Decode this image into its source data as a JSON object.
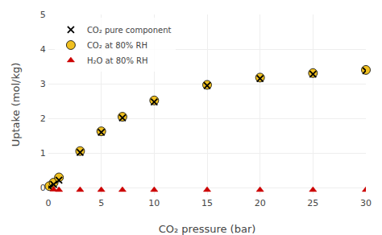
{
  "chart_data": {
    "type": "scatter",
    "x_label": "CO₂ pressure (bar)",
    "y_label": "Uptake (mol/kg)",
    "series": [
      {
        "name": "CO₂ pure component",
        "color": "black",
        "marker": "x",
        "x": [
          0.1,
          0.5,
          1.0,
          3.0,
          5.0,
          7.0,
          10.0,
          15.0,
          20.0,
          25.0,
          30.0
        ],
        "values": [
          0.02,
          0.1,
          0.22,
          1.02,
          1.6,
          2.02,
          2.48,
          2.95,
          3.15,
          3.28,
          3.38
        ]
      },
      {
        "name": "CO₂ at 80% RH",
        "color": "#F0C020",
        "marker": "circle",
        "x": [
          0.1,
          0.5,
          1.0,
          3.0,
          5.0,
          7.0,
          10.0,
          15.0,
          20.0,
          25.0,
          30.0
        ],
        "values": [
          0.05,
          0.15,
          0.3,
          1.06,
          1.63,
          2.05,
          2.52,
          2.97,
          3.18,
          3.31,
          3.4
        ]
      },
      {
        "name": "H₂O at 80% RH",
        "color": "#CC0000",
        "marker": "triangle",
        "x": [
          0.5,
          1.0,
          3.0,
          5.0,
          7.0,
          10.0,
          15.0,
          20.0,
          25.0,
          30.0
        ],
        "values": [
          -0.05,
          -0.06,
          -0.06,
          -0.06,
          -0.06,
          -0.06,
          -0.06,
          -0.06,
          -0.06,
          -0.06
        ]
      }
    ],
    "xlim": [
      0,
      30
    ],
    "ylim": [
      -0.2,
      5
    ],
    "xticks": [
      0,
      5,
      10,
      15,
      20,
      25,
      30
    ],
    "yticks": [
      0,
      1,
      2,
      3,
      4,
      5
    ],
    "legend": "upper left",
    "grid": true
  }
}
